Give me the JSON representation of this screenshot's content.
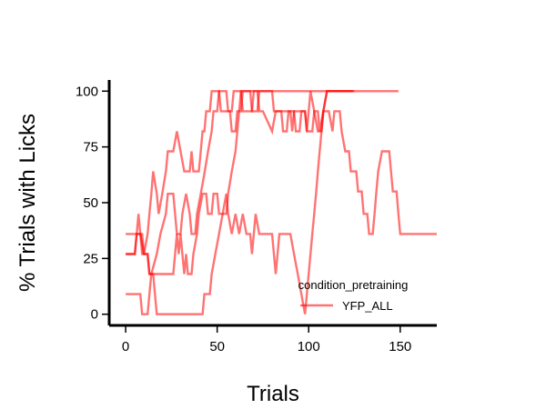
{
  "chart_data": {
    "type": "line",
    "title": "",
    "xlabel": "Trials",
    "ylabel": "% Trials with Licks",
    "xlim": [
      -9,
      170
    ],
    "ylim": [
      -5,
      105
    ],
    "xticks": [
      0,
      50,
      100,
      150
    ],
    "yticks": [
      0,
      25,
      50,
      75,
      100
    ],
    "grid": false,
    "legend": {
      "title": "condition_pretraining",
      "placement": "lower-right",
      "entries": [
        {
          "label": "YFP_ALL",
          "color": "#ff0000"
        }
      ]
    },
    "series": [
      {
        "group": "YFP_ALL",
        "color": "#ff0000",
        "points": [
          [
            0,
            9
          ],
          [
            8,
            9
          ],
          [
            9,
            0
          ],
          [
            12,
            0
          ],
          [
            13,
            9
          ],
          [
            14,
            18
          ],
          [
            17,
            27
          ],
          [
            19,
            36
          ],
          [
            22,
            45
          ],
          [
            23,
            54
          ],
          [
            26,
            54
          ],
          [
            27,
            45
          ],
          [
            28,
            36
          ],
          [
            30,
            36
          ],
          [
            31,
            45
          ],
          [
            33,
            54
          ],
          [
            35,
            45
          ],
          [
            36,
            36
          ],
          [
            38,
            36
          ],
          [
            39,
            45
          ],
          [
            41,
            54
          ],
          [
            43,
            63
          ],
          [
            45,
            73
          ],
          [
            47,
            82
          ],
          [
            48,
            91
          ],
          [
            50,
            91
          ],
          [
            51,
            100
          ],
          [
            55,
            100
          ],
          [
            56,
            91
          ],
          [
            58,
            91
          ],
          [
            59,
            100
          ],
          [
            63,
            100
          ],
          [
            64,
            91
          ],
          [
            69,
            91
          ],
          [
            70,
            100
          ],
          [
            80,
            100
          ],
          [
            81,
            91
          ],
          [
            90,
            91
          ],
          [
            91,
            82
          ],
          [
            92,
            91
          ],
          [
            98,
            91
          ],
          [
            99,
            82
          ],
          [
            100,
            91
          ],
          [
            101,
            100
          ],
          [
            103,
            91
          ],
          [
            105,
            82
          ],
          [
            107,
            82
          ],
          [
            108,
            91
          ],
          [
            111,
            91
          ],
          [
            113,
            82
          ],
          [
            114,
            91
          ],
          [
            117,
            91
          ],
          [
            118,
            82
          ],
          [
            120,
            73
          ],
          [
            122,
            73
          ],
          [
            123,
            64
          ],
          [
            126,
            64
          ],
          [
            127,
            55
          ],
          [
            129,
            55
          ],
          [
            130,
            45
          ],
          [
            132,
            45
          ],
          [
            133,
            36
          ],
          [
            135,
            36
          ],
          [
            136,
            45
          ],
          [
            137,
            55
          ],
          [
            138,
            64
          ],
          [
            140,
            73
          ],
          [
            144,
            73
          ],
          [
            145,
            64
          ],
          [
            146,
            55
          ],
          [
            148,
            55
          ],
          [
            149,
            45
          ],
          [
            150,
            36
          ],
          [
            170,
            36
          ]
        ]
      },
      {
        "group": "YFP_ALL",
        "color": "#ff0000",
        "points": [
          [
            0,
            27
          ],
          [
            5,
            27
          ],
          [
            6,
            36
          ],
          [
            7,
            45
          ],
          [
            8,
            36
          ],
          [
            10,
            27
          ],
          [
            12,
            36
          ],
          [
            13,
            45
          ],
          [
            14,
            54
          ],
          [
            15,
            64
          ],
          [
            17,
            54
          ],
          [
            18,
            45
          ],
          [
            20,
            54
          ],
          [
            22,
            64
          ],
          [
            23,
            73
          ],
          [
            25,
            73
          ],
          [
            26,
            73
          ],
          [
            28,
            82
          ],
          [
            30,
            73
          ],
          [
            32,
            64
          ],
          [
            35,
            64
          ],
          [
            36,
            73
          ],
          [
            37,
            64
          ],
          [
            40,
            64
          ],
          [
            41,
            73
          ],
          [
            42,
            82
          ],
          [
            43,
            82
          ],
          [
            44,
            91
          ],
          [
            46,
            91
          ],
          [
            47,
            100
          ],
          [
            51,
            100
          ],
          [
            52,
            91
          ],
          [
            55,
            91
          ],
          [
            57,
            91
          ],
          [
            58,
            82
          ],
          [
            60,
            82
          ],
          [
            61,
            91
          ],
          [
            63,
            91
          ],
          [
            64,
            100
          ],
          [
            72,
            100
          ],
          [
            73,
            91
          ],
          [
            75,
            91
          ],
          [
            80,
            82
          ],
          [
            82,
            91
          ],
          [
            85,
            91
          ],
          [
            86,
            82
          ],
          [
            88,
            82
          ],
          [
            89,
            91
          ],
          [
            92,
            91
          ],
          [
            93,
            82
          ],
          [
            95,
            82
          ],
          [
            96,
            91
          ],
          [
            98,
            91
          ],
          [
            99,
            82
          ],
          [
            102,
            82
          ],
          [
            103,
            91
          ],
          [
            105,
            91
          ],
          [
            106,
            82
          ],
          [
            108,
            91
          ],
          [
            110,
            100
          ],
          [
            125,
            100
          ]
        ]
      },
      {
        "group": "YFP_ALL",
        "color": "#ff0000",
        "points": [
          [
            0,
            36
          ],
          [
            8,
            36
          ],
          [
            9,
            27
          ],
          [
            12,
            27
          ],
          [
            13,
            18
          ],
          [
            15,
            18
          ],
          [
            16,
            9
          ],
          [
            17,
            0
          ],
          [
            42,
            0
          ],
          [
            43,
            9
          ],
          [
            46,
            9
          ],
          [
            47,
            18
          ],
          [
            49,
            27
          ],
          [
            51,
            36
          ],
          [
            53,
            45
          ],
          [
            55,
            54
          ],
          [
            56,
            45
          ],
          [
            58,
            36
          ],
          [
            60,
            45
          ],
          [
            62,
            36
          ],
          [
            64,
            45
          ],
          [
            66,
            36
          ],
          [
            68,
            36
          ],
          [
            69,
            27
          ],
          [
            70,
            36
          ],
          [
            71,
            45
          ],
          [
            73,
            36
          ],
          [
            80,
            36
          ],
          [
            81,
            27
          ],
          [
            82,
            18
          ],
          [
            83,
            27
          ],
          [
            84,
            36
          ],
          [
            90,
            36
          ],
          [
            92,
            27
          ],
          [
            94,
            18
          ],
          [
            96,
            9
          ],
          [
            98,
            0
          ],
          [
            99,
            9
          ],
          [
            100,
            18
          ],
          [
            101,
            27
          ],
          [
            102,
            36
          ],
          [
            103,
            45
          ],
          [
            104,
            54
          ],
          [
            105,
            64
          ],
          [
            106,
            73
          ],
          [
            107,
            82
          ],
          [
            108,
            91
          ],
          [
            110,
            100
          ],
          [
            149,
            100
          ]
        ]
      },
      {
        "group": "YFP_ALL",
        "color": "#ff0000",
        "points": [
          [
            0,
            27
          ],
          [
            5,
            27
          ],
          [
            6,
            36
          ],
          [
            9,
            36
          ],
          [
            10,
            27
          ],
          [
            12,
            27
          ],
          [
            13,
            18
          ],
          [
            26,
            18
          ],
          [
            27,
            27
          ],
          [
            28,
            36
          ],
          [
            29,
            27
          ],
          [
            30,
            36
          ],
          [
            31,
            27
          ],
          [
            32,
            18
          ],
          [
            33,
            27
          ],
          [
            34,
            18
          ],
          [
            36,
            18
          ],
          [
            37,
            27
          ],
          [
            39,
            36
          ],
          [
            40,
            45
          ],
          [
            42,
            54
          ],
          [
            44,
            54
          ],
          [
            45,
            45
          ],
          [
            47,
            45
          ],
          [
            48,
            54
          ],
          [
            50,
            54
          ],
          [
            51,
            45
          ],
          [
            55,
            45
          ],
          [
            56,
            54
          ],
          [
            58,
            64
          ],
          [
            60,
            73
          ],
          [
            61,
            82
          ],
          [
            62,
            91
          ],
          [
            63,
            100
          ],
          [
            68,
            100
          ],
          [
            69,
            91
          ],
          [
            72,
            91
          ],
          [
            73,
            100
          ],
          [
            124,
            100
          ]
        ]
      }
    ]
  }
}
